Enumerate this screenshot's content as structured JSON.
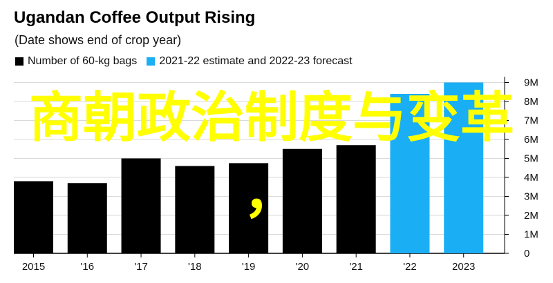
{
  "header": {
    "title": "Ugandan Coffee Output Rising",
    "subtitle": "(Date shows end of crop year)"
  },
  "legend": [
    {
      "label": "Number of 60-kg bags",
      "color": "#000000"
    },
    {
      "label": "2021-22 estimate and 2022-23 forecast",
      "color": "#1aaef5"
    }
  ],
  "overlay": {
    "text": "商朝政治制度与变革",
    "comma": "，"
  },
  "chart_data": {
    "type": "bar",
    "categories": [
      "2015",
      "'16",
      "'17",
      "'18",
      "'19",
      "'20",
      "'21",
      "'22",
      "2023"
    ],
    "values": [
      3.8,
      3.7,
      5.0,
      4.6,
      4.75,
      5.5,
      5.7,
      8.4,
      9.0
    ],
    "estimate_flags": [
      false,
      false,
      false,
      false,
      false,
      false,
      false,
      true,
      true
    ],
    "colors": {
      "actual": "#000000",
      "estimate": "#1aaef5"
    },
    "y_ticks": [
      "0",
      "1M",
      "2M",
      "3M",
      "4M",
      "5M",
      "6M",
      "7M",
      "8M",
      "9M"
    ],
    "ylim": [
      0,
      9.3
    ],
    "grid": true,
    "axis_side": "right",
    "legend_position": "top-left"
  }
}
